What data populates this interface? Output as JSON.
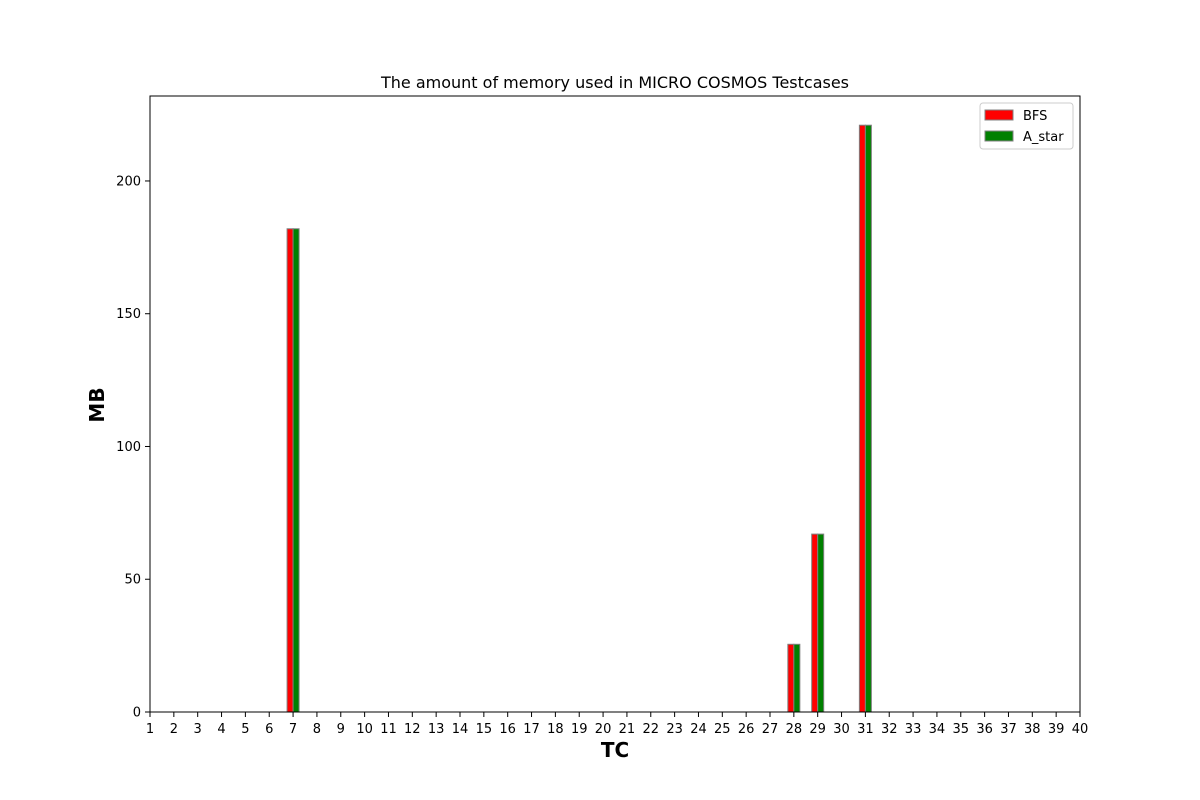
{
  "chart_data": {
    "type": "bar",
    "title": "The amount of memory used in MICRO COSMOS Testcases",
    "xlabel": "TC",
    "ylabel": "MB",
    "categories": [
      "1",
      "2",
      "3",
      "4",
      "5",
      "6",
      "7",
      "8",
      "9",
      "10",
      "11",
      "12",
      "13",
      "14",
      "15",
      "16",
      "17",
      "18",
      "19",
      "20",
      "21",
      "22",
      "23",
      "24",
      "25",
      "26",
      "27",
      "28",
      "29",
      "30",
      "31",
      "32",
      "33",
      "34",
      "35",
      "36",
      "37",
      "38",
      "39",
      "40"
    ],
    "series": [
      {
        "name": "BFS",
        "color": "#ff0000",
        "values": [
          0,
          0,
          0,
          0,
          0,
          0,
          182,
          0,
          0,
          0,
          0,
          0,
          0,
          0,
          0,
          0,
          0,
          0,
          0,
          0,
          0,
          0,
          0,
          0,
          0,
          0,
          0,
          25.5,
          67,
          0,
          221,
          0,
          0,
          0,
          0,
          0,
          0,
          0,
          0,
          0
        ]
      },
      {
        "name": "A_star",
        "color": "#008000",
        "values": [
          0,
          0,
          0,
          0,
          0,
          0,
          182,
          0,
          0,
          0,
          0,
          0,
          0,
          0,
          0,
          0,
          0,
          0,
          0,
          0,
          0,
          0,
          0,
          0,
          0,
          0,
          0,
          25.5,
          67,
          0,
          221,
          0,
          0,
          0,
          0,
          0,
          0,
          0,
          0,
          0
        ]
      }
    ],
    "ylim": [
      0,
      232
    ],
    "yticks": [
      0,
      50,
      100,
      150,
      200
    ],
    "grid": false,
    "legend_position": "top-right"
  }
}
